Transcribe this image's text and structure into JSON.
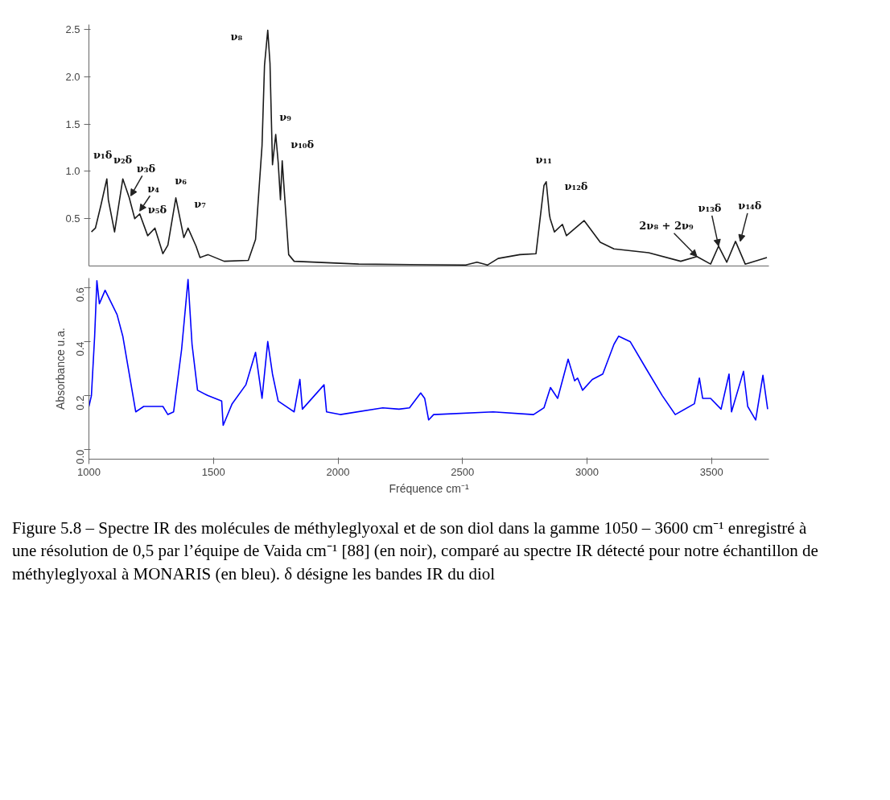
{
  "chart_data": [
    {
      "type": "line",
      "xlim": [
        1000,
        3730
      ],
      "ylim": [
        0,
        2.55
      ],
      "yticks": [
        0.5,
        {
          "value": 1,
          "label": "1.0"
        },
        1.5,
        {
          "value": 2,
          "label": "2.0"
        },
        2.5
      ],
      "tick_labels": "y",
      "grid": false,
      "line_style": "solid",
      "series": [
        {
          "color": "#1a1a1a",
          "x": [
            1010,
            1026,
            1048,
            1072,
            1078,
            1103,
            1136,
            1162,
            1184,
            1204,
            1236,
            1265,
            1297,
            1317,
            1349,
            1381,
            1398,
            1430,
            1446,
            1478,
            1543,
            1640,
            1669,
            1695,
            1705,
            1718,
            1727,
            1737,
            1750,
            1760,
            1769,
            1776,
            1802,
            1824,
            2083,
            2513,
            2558,
            2600,
            2643,
            2730,
            2795,
            2827,
            2836,
            2849,
            2852,
            2869,
            2901,
            2917,
            2988,
            3053,
            3108,
            3247,
            3376,
            3441,
            3496,
            3528,
            3561,
            3596,
            3635,
            3722
          ],
          "values": [
            0.36,
            0.4,
            0.64,
            0.92,
            0.7,
            0.36,
            0.92,
            0.72,
            0.5,
            0.55,
            0.32,
            0.4,
            0.13,
            0.22,
            0.72,
            0.3,
            0.4,
            0.21,
            0.09,
            0.12,
            0.05,
            0.06,
            0.28,
            1.27,
            2.12,
            2.49,
            2.14,
            1.07,
            1.39,
            1.09,
            0.7,
            1.11,
            0.12,
            0.05,
            0.02,
            0.01,
            0.04,
            0.01,
            0.08,
            0.12,
            0.13,
            0.85,
            0.89,
            0.54,
            0.5,
            0.36,
            0.44,
            0.32,
            0.48,
            0.25,
            0.18,
            0.14,
            0.05,
            0.1,
            0.02,
            0.21,
            0.04,
            0.26,
            0.02,
            0.09
          ]
        }
      ],
      "annotations": [
        {
          "text": "ν₁δ",
          "x": 1072,
          "y": 0.92
        },
        {
          "text": "ν₂δ",
          "x": 1136,
          "y": 0.92
        },
        {
          "text": "ν₃δ",
          "x": 1168,
          "y": 0.74
        },
        {
          "text": "ν₄",
          "x": 1204,
          "y": 0.58
        },
        {
          "text": "ν₅δ",
          "x": 1265,
          "y": 0.4
        },
        {
          "text": "ν₆",
          "x": 1349,
          "y": 0.72
        },
        {
          "text": "ν₇",
          "x": 1398,
          "y": 0.4
        },
        {
          "text": "ν₈",
          "x": 1718,
          "y": 2.49
        },
        {
          "text": "ν₉",
          "x": 1750,
          "y": 1.39
        },
        {
          "text": "ν₁₀δ",
          "x": 1776,
          "y": 1.11
        },
        {
          "text": "ν₁₁",
          "x": 2836,
          "y": 0.89
        },
        {
          "text": "ν₁₂δ",
          "x": 2869,
          "y": 0.5
        },
        {
          "text": "2ν₈ + 2ν₉",
          "x": 3441,
          "y": 0.1
        },
        {
          "text": "ν₁₃δ",
          "x": 3528,
          "y": 0.21
        },
        {
          "text": "ν₁₄δ",
          "x": 3615,
          "y": 0.26
        }
      ]
    },
    {
      "type": "line",
      "xlim": [
        1000,
        3730
      ],
      "ylim": [
        -0.035,
        0.635
      ],
      "xticks": [
        1000,
        1500,
        2000,
        2500,
        3000,
        3500
      ],
      "yticks": [
        {
          "value": 0,
          "label": "0.0"
        },
        0.2,
        0.4,
        0.6
      ],
      "grid": false,
      "line_style": "solid",
      "xlabel": "Fréquence cm⁻¹",
      "ylabel": "Absorbance u.a.",
      "series": [
        {
          "color": "#0000ff",
          "x": [
            1000,
            1010,
            1023,
            1032,
            1042,
            1065,
            1113,
            1136,
            1188,
            1220,
            1297,
            1317,
            1340,
            1372,
            1398,
            1414,
            1436,
            1478,
            1533,
            1539,
            1575,
            1630,
            1669,
            1695,
            1718,
            1737,
            1760,
            1824,
            1847,
            1857,
            1944,
            1954,
            2009,
            2180,
            2245,
            2287,
            2332,
            2348,
            2364,
            2384,
            2623,
            2785,
            2827,
            2853,
            2882,
            2924,
            2950,
            2962,
            2982,
            3021,
            3063,
            3108,
            3127,
            3173,
            3237,
            3302,
            3354,
            3431,
            3451,
            3464,
            3496,
            3538,
            3570,
            3580,
            3628,
            3645,
            3677,
            3706,
            3725
          ],
          "values": [
            0.16,
            0.2,
            0.42,
            0.625,
            0.54,
            0.59,
            0.5,
            0.42,
            0.14,
            0.16,
            0.16,
            0.13,
            0.14,
            0.37,
            0.63,
            0.39,
            0.22,
            0.2,
            0.18,
            0.09,
            0.17,
            0.24,
            0.36,
            0.19,
            0.4,
            0.28,
            0.18,
            0.14,
            0.26,
            0.15,
            0.24,
            0.14,
            0.13,
            0.155,
            0.15,
            0.155,
            0.21,
            0.19,
            0.11,
            0.13,
            0.14,
            0.13,
            0.155,
            0.23,
            0.19,
            0.335,
            0.255,
            0.265,
            0.22,
            0.26,
            0.28,
            0.39,
            0.42,
            0.4,
            0.3,
            0.2,
            0.13,
            0.17,
            0.265,
            0.19,
            0.19,
            0.15,
            0.28,
            0.14,
            0.29,
            0.16,
            0.11,
            0.275,
            0.15
          ]
        }
      ],
      "annotations": [
        "Figure 5.8 – Spectre IR des molécules de méthyleglyoxal et de son diol dans la gamme 1050 – 3600 cm⁻¹ enregistré à une résolution de 0,5 par l’équipe de Vaida cm⁻¹ [88] (en noir), comparé au spectre IR détecté pour notre échantillon de méthyleglyoxal à MONARIS (en bleu). δ désigne les bandes IR du diol"
      ]
    }
  ]
}
